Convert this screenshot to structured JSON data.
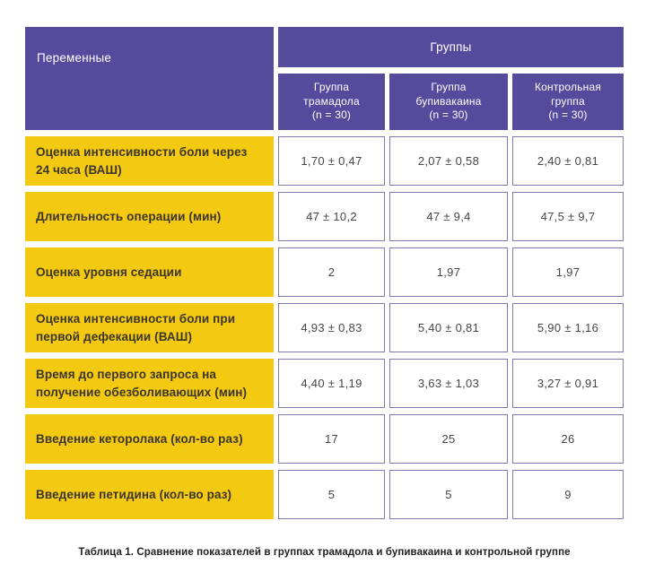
{
  "table": {
    "variables_header": "Переменные",
    "groups_header": "Группы",
    "group_columns": [
      {
        "name": "Группа трамадола",
        "n": "(n = 30)"
      },
      {
        "name": "Группа бупивакаина",
        "n": "(n = 30)"
      },
      {
        "name": "Контрольная группа",
        "n": "(n = 30)"
      }
    ],
    "rows": [
      {
        "label": "Оценка интенсивности боли через 24 часа (ВАШ)",
        "values": [
          "1,70 ± 0,47",
          "2,07 ± 0,58",
          "2,40 ± 0,81"
        ]
      },
      {
        "label": "Длительность операции (мин)",
        "values": [
          "47 ± 10,2",
          "47 ± 9,4",
          "47,5 ± 9,7"
        ]
      },
      {
        "label": "Оценка уровня седации",
        "values": [
          "2",
          "1,97",
          "1,97"
        ]
      },
      {
        "label": "Оценка интенсивности боли при первой дефекации (ВАШ)",
        "values": [
          "4,93 ± 0,83",
          "5,40 ± 0,81",
          "5,90 ± 1,16"
        ]
      },
      {
        "label": "Время до первого запроса на получение обезболивающих (мин)",
        "values": [
          "4,40 ± 1,19",
          "3,63 ± 1,03",
          "3,27 ± 0,91"
        ]
      },
      {
        "label": "Введение кеторолака (кол-во раз)",
        "values": [
          "17",
          "25",
          "26"
        ]
      },
      {
        "label": "Введение петидина (кол-во раз)",
        "values": [
          "5",
          "5",
          "9"
        ]
      }
    ],
    "caption": "Таблица 1. Сравнение показателей в группах трамадола и бупивакаина и контрольной группе"
  },
  "colors": {
    "header_purple": "#544B9C",
    "label_yellow": "#F3C912",
    "cell_border": "#7F7AB3",
    "value_text": "#454545",
    "label_text": "#3B352C",
    "header_text": "#FFFFFF",
    "caption_text": "#1F1F1F",
    "page_bg": "#FFFFFF"
  }
}
